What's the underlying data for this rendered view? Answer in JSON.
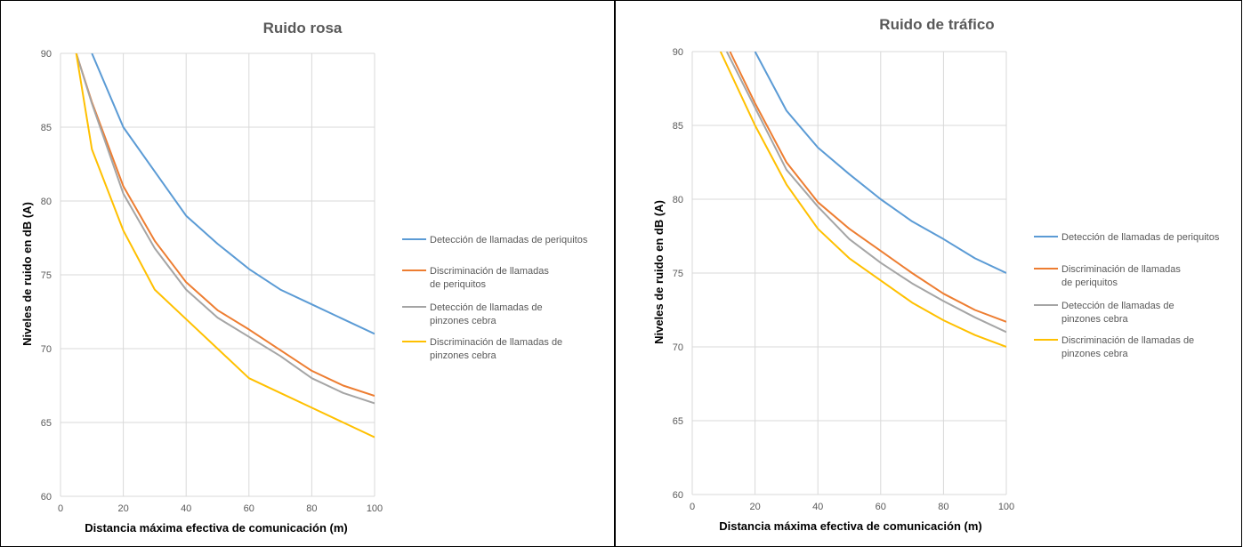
{
  "chart_data": [
    {
      "type": "line",
      "title": "Ruido rosa",
      "xlabel": "Distancia máxima efectiva de comunicación (m)",
      "ylabel": "Niveles de ruido en dB (A)",
      "xlim": [
        0,
        100
      ],
      "ylim": [
        60,
        90
      ],
      "xticks": [
        0,
        20,
        40,
        60,
        80,
        100
      ],
      "yticks": [
        60,
        65,
        70,
        75,
        80,
        85,
        90
      ],
      "grid": true,
      "legend_position": "right",
      "series": [
        {
          "name": "Detección de llamadas de periquitos",
          "color": "#5b9bd5",
          "x": [
            10,
            20,
            30,
            40,
            50,
            60,
            70,
            80,
            90,
            100
          ],
          "y": [
            90,
            85,
            82,
            79,
            77.1,
            75.4,
            74,
            73,
            72,
            71
          ]
        },
        {
          "name": "Discriminación de llamadas de periquitos",
          "color": "#ed7d31",
          "x": [
            5,
            10,
            20,
            30,
            40,
            50,
            60,
            70,
            80,
            90,
            100
          ],
          "y": [
            90,
            86.7,
            81,
            77.3,
            74.5,
            72.6,
            71.3,
            69.9,
            68.5,
            67.5,
            66.8
          ]
        },
        {
          "name": "Detección de llamadas de pinzones cebra",
          "color": "#a5a5a5",
          "x": [
            5,
            10,
            20,
            30,
            40,
            50,
            60,
            70,
            80,
            90,
            100
          ],
          "y": [
            90,
            86.6,
            80.5,
            76.8,
            74,
            72.1,
            70.8,
            69.5,
            68,
            67,
            66.3
          ]
        },
        {
          "name": "Discriminación de llamadas de pinzones cebra",
          "color": "#ffc000",
          "x": [
            5,
            10,
            20,
            30,
            40,
            50,
            60,
            70,
            80,
            90,
            100
          ],
          "y": [
            90,
            83.5,
            78,
            74,
            72,
            70,
            68,
            67,
            66,
            65,
            64
          ]
        }
      ]
    },
    {
      "type": "line",
      "title": "Ruido de tráfico",
      "xlabel": "Distancia máxima efectiva de comunicación (m)",
      "ylabel": "Niveles de ruido en dB (A)",
      "xlim": [
        0,
        100
      ],
      "ylim": [
        60,
        90
      ],
      "xticks": [
        0,
        20,
        40,
        60,
        80,
        100
      ],
      "yticks": [
        60,
        65,
        70,
        75,
        80,
        85,
        90
      ],
      "grid": true,
      "legend_position": "right",
      "series": [
        {
          "name": "Detección de llamadas de periquitos",
          "color": "#5b9bd5",
          "x": [
            20,
            30,
            40,
            50,
            60,
            70,
            80,
            90,
            100
          ],
          "y": [
            90,
            86,
            83.5,
            81.7,
            80,
            78.5,
            77.3,
            76,
            75
          ]
        },
        {
          "name": "Discriminación de llamadas de periquitos",
          "color": "#ed7d31",
          "x": [
            12,
            20,
            30,
            40,
            50,
            60,
            70,
            80,
            90,
            100
          ],
          "y": [
            90,
            86.5,
            82.5,
            79.8,
            78,
            76.5,
            75,
            73.6,
            72.5,
            71.7
          ]
        },
        {
          "name": "Detección de llamadas de pinzones cebra",
          "color": "#a5a5a5",
          "x": [
            11,
            20,
            30,
            40,
            50,
            60,
            70,
            80,
            90,
            100
          ],
          "y": [
            90,
            86.2,
            82,
            79.5,
            77.3,
            75.7,
            74.3,
            73.1,
            72,
            71
          ]
        },
        {
          "name": "Discriminación de llamadas de pinzones cebra",
          "color": "#ffc000",
          "x": [
            9,
            20,
            30,
            40,
            50,
            60,
            70,
            80,
            90,
            100
          ],
          "y": [
            90,
            85,
            81,
            78,
            76,
            74.5,
            73,
            71.8,
            70.8,
            70
          ]
        }
      ]
    }
  ]
}
